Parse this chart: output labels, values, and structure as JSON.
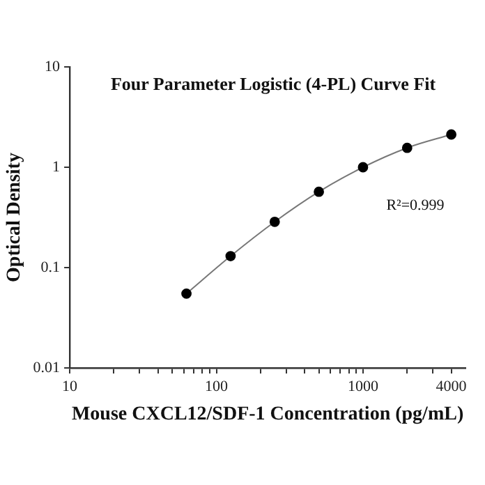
{
  "chart_data": {
    "type": "line",
    "title": "Four Parameter Logistic (4-PL) Curve Fit",
    "xlabel": "Mouse CXCL12/SDF-1 Concentration (pg/mL)",
    "ylabel": "Optical Density",
    "x": [
      62.5,
      125,
      250,
      500,
      1000,
      2000,
      4000
    ],
    "series": [
      {
        "color": "#000000",
        "values": [
          0.055,
          0.13,
          0.286,
          0.57,
          1.0,
          1.56,
          2.12
        ]
      }
    ],
    "log": "xy",
    "xlim": [
      10,
      5000
    ],
    "ylim": [
      0.01,
      10
    ],
    "xticks": [
      10,
      {
        "value": 20,
        "label": null
      },
      {
        "value": 30,
        "label": null
      },
      {
        "value": 40,
        "label": null
      },
      {
        "value": 50,
        "label": null
      },
      {
        "value": 60,
        "label": null
      },
      {
        "value": 70,
        "label": null
      },
      {
        "value": 80,
        "label": null
      },
      {
        "value": 90,
        "label": null
      },
      100,
      {
        "value": 200,
        "label": null
      },
      {
        "value": 300,
        "label": null
      },
      {
        "value": 400,
        "label": null
      },
      {
        "value": 500,
        "label": null
      },
      {
        "value": 600,
        "label": null
      },
      {
        "value": 700,
        "label": null
      },
      {
        "value": 800,
        "label": null
      },
      {
        "value": 900,
        "label": null
      },
      1000,
      {
        "value": 2000,
        "label": null
      },
      {
        "value": 3000,
        "label": null
      },
      4000
    ],
    "yticks": [
      0.01,
      0.1,
      1,
      10
    ],
    "annotations": [
      "R²=0.999"
    ],
    "grid": false,
    "legend": false,
    "marker": "circle",
    "line_style": "solid"
  }
}
